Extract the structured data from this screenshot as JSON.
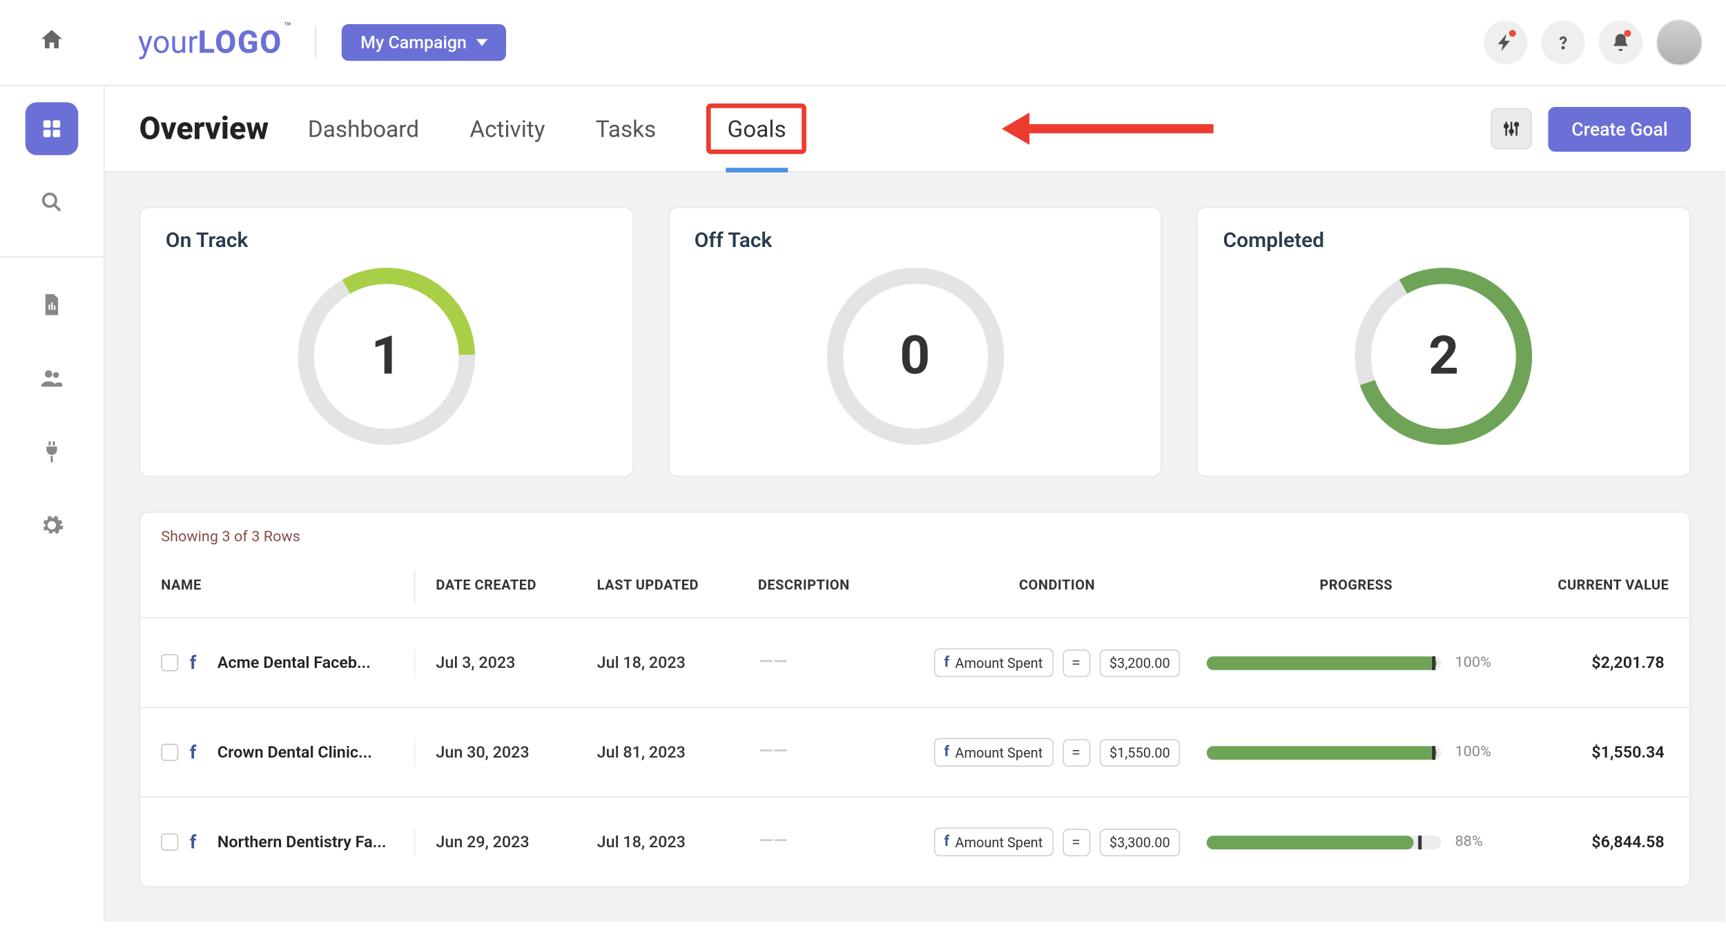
{
  "header": {
    "logo_part1": "your",
    "logo_part2": "LOGO",
    "logo_tm": "™",
    "campaign_label": "My Campaign"
  },
  "sidebar": {
    "items": [
      "grid",
      "search",
      "file",
      "users",
      "plug",
      "gear"
    ]
  },
  "subheader": {
    "title": "Overview",
    "tabs": [
      {
        "label": "Dashboard",
        "active": false
      },
      {
        "label": "Activity",
        "active": false
      },
      {
        "label": "Tasks",
        "active": false
      },
      {
        "label": "Goals",
        "active": true,
        "highlighted": true
      }
    ],
    "create_label": "Create Goal"
  },
  "annotation": {
    "highlight_color": "#ee3b2f",
    "arrow_color": "#ee3b2f"
  },
  "stat_cards": [
    {
      "title": "On Track",
      "value": "1",
      "pct": 0.33,
      "start_deg": -30,
      "color": "#a8cf45",
      "track": "#e4e4e4"
    },
    {
      "title": "Off Tack",
      "value": "0",
      "pct": 0.0,
      "start_deg": 0,
      "color": "#e4e4e4",
      "track": "#e4e4e4"
    },
    {
      "title": "Completed",
      "value": "2",
      "pct": 0.78,
      "start_deg": -30,
      "color": "#6fa458",
      "track": "#e4e4e4"
    }
  ],
  "table": {
    "showing_text": "Showing 3 of 3 Rows",
    "columns": {
      "name": "NAME",
      "date_created": "DATE CREATED",
      "last_updated": "LAST UPDATED",
      "description": "DESCRIPTION",
      "condition": "CONDITION",
      "progress": "PROGRESS",
      "current_value": "CURRENT VALUE"
    },
    "condition_label": "Amount Spent",
    "condition_op": "=",
    "progress_bar_color": "#6fa458",
    "rows": [
      {
        "name": "Acme Dental Faceb...",
        "date_created": "Jul 3, 2023",
        "last_updated": "Jul 18, 2023",
        "cond_value": "$3,200.00",
        "progress_pct": "100%",
        "progress_fill": 0.98,
        "progress_mark": 0.96,
        "current_value": "$2,201.78"
      },
      {
        "name": "Crown Dental Clinic...",
        "date_created": "Jun 30, 2023",
        "last_updated": "Jul 81, 2023",
        "cond_value": "$1,550.00",
        "progress_pct": "100%",
        "progress_fill": 0.98,
        "progress_mark": 0.96,
        "current_value": "$1,550.34"
      },
      {
        "name": "Northern Dentistry Fa...",
        "date_created": "Jun 29, 2023",
        "last_updated": "Jul 18, 2023",
        "cond_value": "$3,300.00",
        "progress_pct": "88%",
        "progress_fill": 0.88,
        "progress_mark": 0.9,
        "current_value": "$6,844.58"
      }
    ]
  },
  "colors": {
    "primary": "#6b70d6",
    "body_bg": "#f0f2f4",
    "border": "#e6e6e6"
  }
}
